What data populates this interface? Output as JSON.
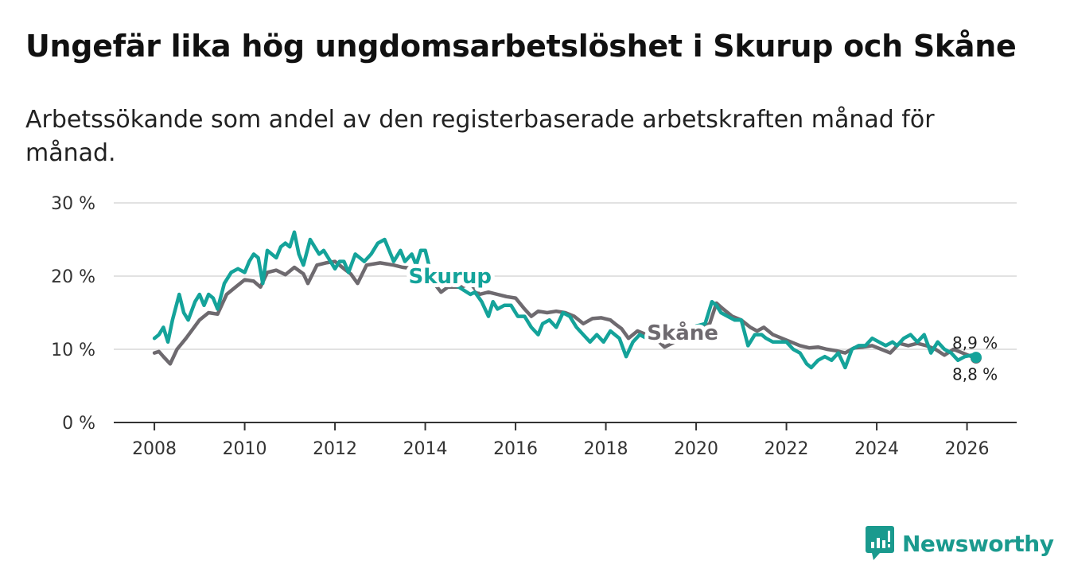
{
  "header": {
    "title": "Ungefär lika hög ungdomsarbetslöshet i Skurup och Skåne",
    "subtitle": "Arbetssökande som andel av den registerbaserade arbetskraften månad för månad."
  },
  "brand": {
    "name": "Newsworthy",
    "color": "#1a9a8e"
  },
  "chart_data": {
    "type": "line",
    "title": "Ungefär lika hög ungdomsarbetslöshet i Skurup och Skåne",
    "xlabel": "",
    "ylabel": "",
    "xlim": [
      2007.1,
      2027.1
    ],
    "ylim": [
      0,
      30
    ],
    "y_ticks": [
      0,
      10,
      20,
      30
    ],
    "y_tick_labels": [
      "0 %",
      "10 %",
      "20 %",
      "30 %"
    ],
    "x_ticks": [
      2008,
      2010,
      2012,
      2014,
      2016,
      2018,
      2020,
      2022,
      2024,
      2026
    ],
    "x_tick_labels": [
      "2008",
      "2010",
      "2012",
      "2014",
      "2016",
      "2018",
      "2020",
      "2022",
      "2024",
      "2026"
    ],
    "grid": true,
    "series": [
      {
        "name": "Skåne",
        "color": "#6e6a6f",
        "x": [
          2008.0,
          2008.1,
          2008.2,
          2008.35,
          2008.5,
          2008.7,
          2009.0,
          2009.2,
          2009.4,
          2009.6,
          2009.8,
          2010.0,
          2010.2,
          2010.35,
          2010.5,
          2010.7,
          2010.9,
          2011.1,
          2011.3,
          2011.4,
          2011.6,
          2011.8,
          2012.0,
          2012.2,
          2012.35,
          2012.5,
          2012.7,
          2013.0,
          2013.3,
          2013.5,
          2013.8,
          2014.0,
          2014.2,
          2014.35,
          2014.5,
          2014.8,
          2015.0,
          2015.2,
          2015.4,
          2015.6,
          2015.8,
          2016.0,
          2016.2,
          2016.35,
          2016.5,
          2016.7,
          2016.9,
          2017.1,
          2017.3,
          2017.5,
          2017.7,
          2017.9,
          2018.1,
          2018.2,
          2018.35,
          2018.5,
          2018.7,
          2018.9,
          2019.1,
          2019.3,
          2020.3,
          2020.45,
          2020.6,
          2020.8,
          2021.0,
          2021.2,
          2021.35,
          2021.5,
          2021.7,
          2021.9,
          2022.1,
          2022.3,
          2022.5,
          2022.7,
          2022.9,
          2023.1,
          2023.3,
          2023.5,
          2023.7,
          2023.9,
          2024.1,
          2024.3,
          2024.5,
          2024.7,
          2024.9,
          2025.1,
          2025.3,
          2025.5,
          2025.7,
          2025.9,
          2026.1,
          2026.2
        ],
        "values": [
          9.5,
          9.7,
          9.0,
          8.0,
          10.0,
          11.5,
          14.0,
          15.0,
          14.8,
          17.5,
          18.5,
          19.5,
          19.3,
          18.5,
          20.5,
          20.8,
          20.2,
          21.2,
          20.3,
          19.0,
          21.5,
          21.8,
          22.0,
          21.0,
          20.3,
          19.0,
          21.5,
          21.8,
          21.5,
          21.2,
          21.0,
          20.5,
          19.0,
          17.8,
          18.5,
          18.5,
          19.0,
          17.5,
          17.8,
          17.5,
          17.2,
          17.0,
          15.5,
          14.5,
          15.2,
          15.0,
          15.2,
          15.0,
          14.5,
          13.5,
          14.2,
          14.3,
          14.0,
          13.5,
          12.8,
          11.5,
          12.5,
          12.0,
          11.5,
          10.3,
          13.5,
          16.3,
          15.5,
          14.5,
          14.0,
          13.0,
          12.5,
          13.0,
          12.0,
          11.5,
          11.0,
          10.5,
          10.2,
          10.3,
          10.0,
          9.8,
          9.5,
          10.2,
          10.3,
          10.5,
          10.0,
          9.5,
          10.8,
          10.5,
          10.8,
          10.5,
          10.0,
          9.2,
          10.0,
          9.5,
          9.0,
          8.8
        ],
        "end_label": "8,8 %"
      },
      {
        "name": "Skurup",
        "color": "#14a39a",
        "x": [
          2008.0,
          2008.1,
          2008.2,
          2008.3,
          2008.4,
          2008.55,
          2008.65,
          2008.75,
          2008.9,
          2009.0,
          2009.1,
          2009.2,
          2009.3,
          2009.4,
          2009.55,
          2009.7,
          2009.85,
          2010.0,
          2010.1,
          2010.2,
          2010.3,
          2010.4,
          2010.5,
          2010.6,
          2010.7,
          2010.8,
          2010.9,
          2011.0,
          2011.1,
          2011.2,
          2011.3,
          2011.45,
          2011.55,
          2011.65,
          2011.75,
          2011.85,
          2012.0,
          2012.1,
          2012.2,
          2012.3,
          2012.45,
          2012.55,
          2012.65,
          2012.8,
          2012.95,
          2013.1,
          2013.2,
          2013.3,
          2013.45,
          2013.55,
          2013.7,
          2013.8,
          2013.9,
          2014.0,
          2014.1,
          2015.0,
          2015.1,
          2015.25,
          2015.4,
          2015.5,
          2015.6,
          2015.75,
          2015.9,
          2016.05,
          2016.2,
          2016.35,
          2016.5,
          2016.6,
          2016.75,
          2016.9,
          2017.05,
          2017.2,
          2017.35,
          2017.5,
          2017.65,
          2017.8,
          2017.95,
          2018.1,
          2018.2,
          2018.3,
          2018.45,
          2018.6,
          2018.75,
          2018.9,
          2019.1,
          2019.3,
          2020.2,
          2020.35,
          2020.45,
          2020.55,
          2020.7,
          2020.85,
          2021.0,
          2021.15,
          2021.3,
          2021.45,
          2021.55,
          2021.7,
          2021.85,
          2022.0,
          2022.15,
          2022.3,
          2022.45,
          2022.55,
          2022.7,
          2022.85,
          2023.0,
          2023.15,
          2023.3,
          2023.45,
          2023.6,
          2023.75,
          2023.9,
          2024.05,
          2024.2,
          2024.35,
          2024.45,
          2024.6,
          2024.75,
          2024.9,
          2025.05,
          2025.2,
          2025.35,
          2025.5,
          2025.65,
          2025.8,
          2025.95,
          2026.1,
          2026.2
        ],
        "values": [
          11.5,
          12.0,
          13.0,
          11.0,
          14.0,
          17.5,
          15.0,
          14.0,
          16.5,
          17.5,
          16.0,
          17.5,
          17.0,
          15.5,
          19.0,
          20.5,
          21.0,
          20.5,
          22.0,
          23.0,
          22.5,
          19.0,
          23.5,
          23.0,
          22.5,
          24.0,
          24.5,
          24.0,
          26.0,
          23.0,
          21.5,
          25.0,
          24.0,
          23.0,
          23.5,
          22.5,
          21.0,
          22.0,
          22.0,
          20.5,
          23.0,
          22.5,
          22.0,
          23.0,
          24.5,
          25.0,
          23.5,
          22.0,
          23.5,
          22.0,
          23.0,
          21.5,
          23.5,
          23.5,
          21.0,
          17.5,
          17.8,
          16.5,
          14.5,
          16.5,
          15.5,
          16.0,
          16.0,
          14.5,
          14.5,
          13.0,
          12.0,
          13.5,
          14.0,
          13.0,
          15.0,
          14.5,
          13.0,
          12.0,
          11.0,
          12.0,
          11.0,
          12.5,
          12.0,
          11.5,
          9.0,
          11.0,
          12.0,
          11.5,
          11.0,
          12.0,
          13.5,
          16.5,
          16.0,
          15.0,
          14.5,
          14.0,
          14.0,
          10.5,
          12.0,
          12.0,
          11.5,
          11.0,
          11.0,
          11.0,
          10.0,
          9.5,
          8.0,
          7.5,
          8.5,
          9.0,
          8.5,
          9.5,
          7.5,
          10.0,
          10.5,
          10.5,
          11.5,
          11.0,
          10.5,
          11.0,
          10.5,
          11.5,
          12.0,
          11.0,
          12.0,
          9.5,
          11.0,
          10.0,
          9.5,
          8.5,
          9.0,
          9.2,
          8.9
        ],
        "end_label": "8,9 %"
      }
    ]
  }
}
